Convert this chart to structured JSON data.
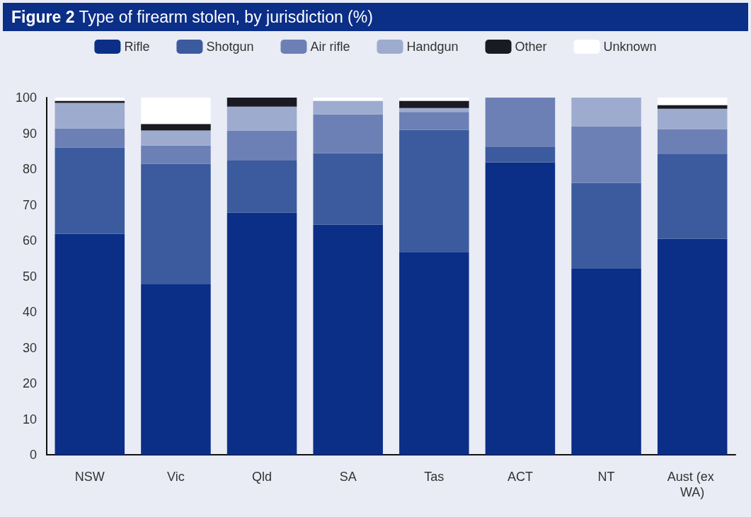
{
  "chart_data": {
    "type": "bar",
    "title": "Figure 2 Type of firearm stolen, by jurisdiction (%)",
    "stacked": true,
    "legend": "top",
    "grid": false,
    "categories": [
      "NSW",
      "Vic",
      "Qld",
      "SA",
      "Tas",
      "ACT",
      "NT",
      "Aust (ex WA)"
    ],
    "ylim": [
      0,
      100
    ],
    "yticks": [
      0,
      10,
      20,
      30,
      40,
      50,
      60,
      70,
      80,
      90,
      100
    ],
    "series": [
      {
        "name": "Rifle",
        "color": "#0b2e87",
        "values": [
          61.9,
          47.7,
          67.8,
          64.4,
          56.8,
          81.9,
          52.1,
          60.5
        ]
      },
      {
        "name": "Shotgun",
        "color": "#3c5b9e",
        "values": [
          24.1,
          33.8,
          14.6,
          20.0,
          34.2,
          4.4,
          24.0,
          23.8
        ]
      },
      {
        "name": "Air rifle",
        "color": "#6c80b5",
        "values": [
          5.4,
          5.1,
          8.4,
          10.9,
          5.0,
          13.7,
          15.9,
          6.9
        ]
      },
      {
        "name": "Handgun",
        "color": "#9dabcf",
        "values": [
          7.1,
          4.2,
          6.7,
          3.8,
          1.1,
          null,
          8.0,
          5.7
        ]
      },
      {
        "name": "Other",
        "color": "#1a1a22",
        "values": [
          0.6,
          1.8,
          2.5,
          null,
          2.0,
          null,
          null,
          1.0
        ]
      },
      {
        "name": "Unknown",
        "color": "#ffffff",
        "values": [
          0.9,
          7.4,
          null,
          0.9,
          0.9,
          null,
          null,
          2.1
        ]
      }
    ]
  }
}
